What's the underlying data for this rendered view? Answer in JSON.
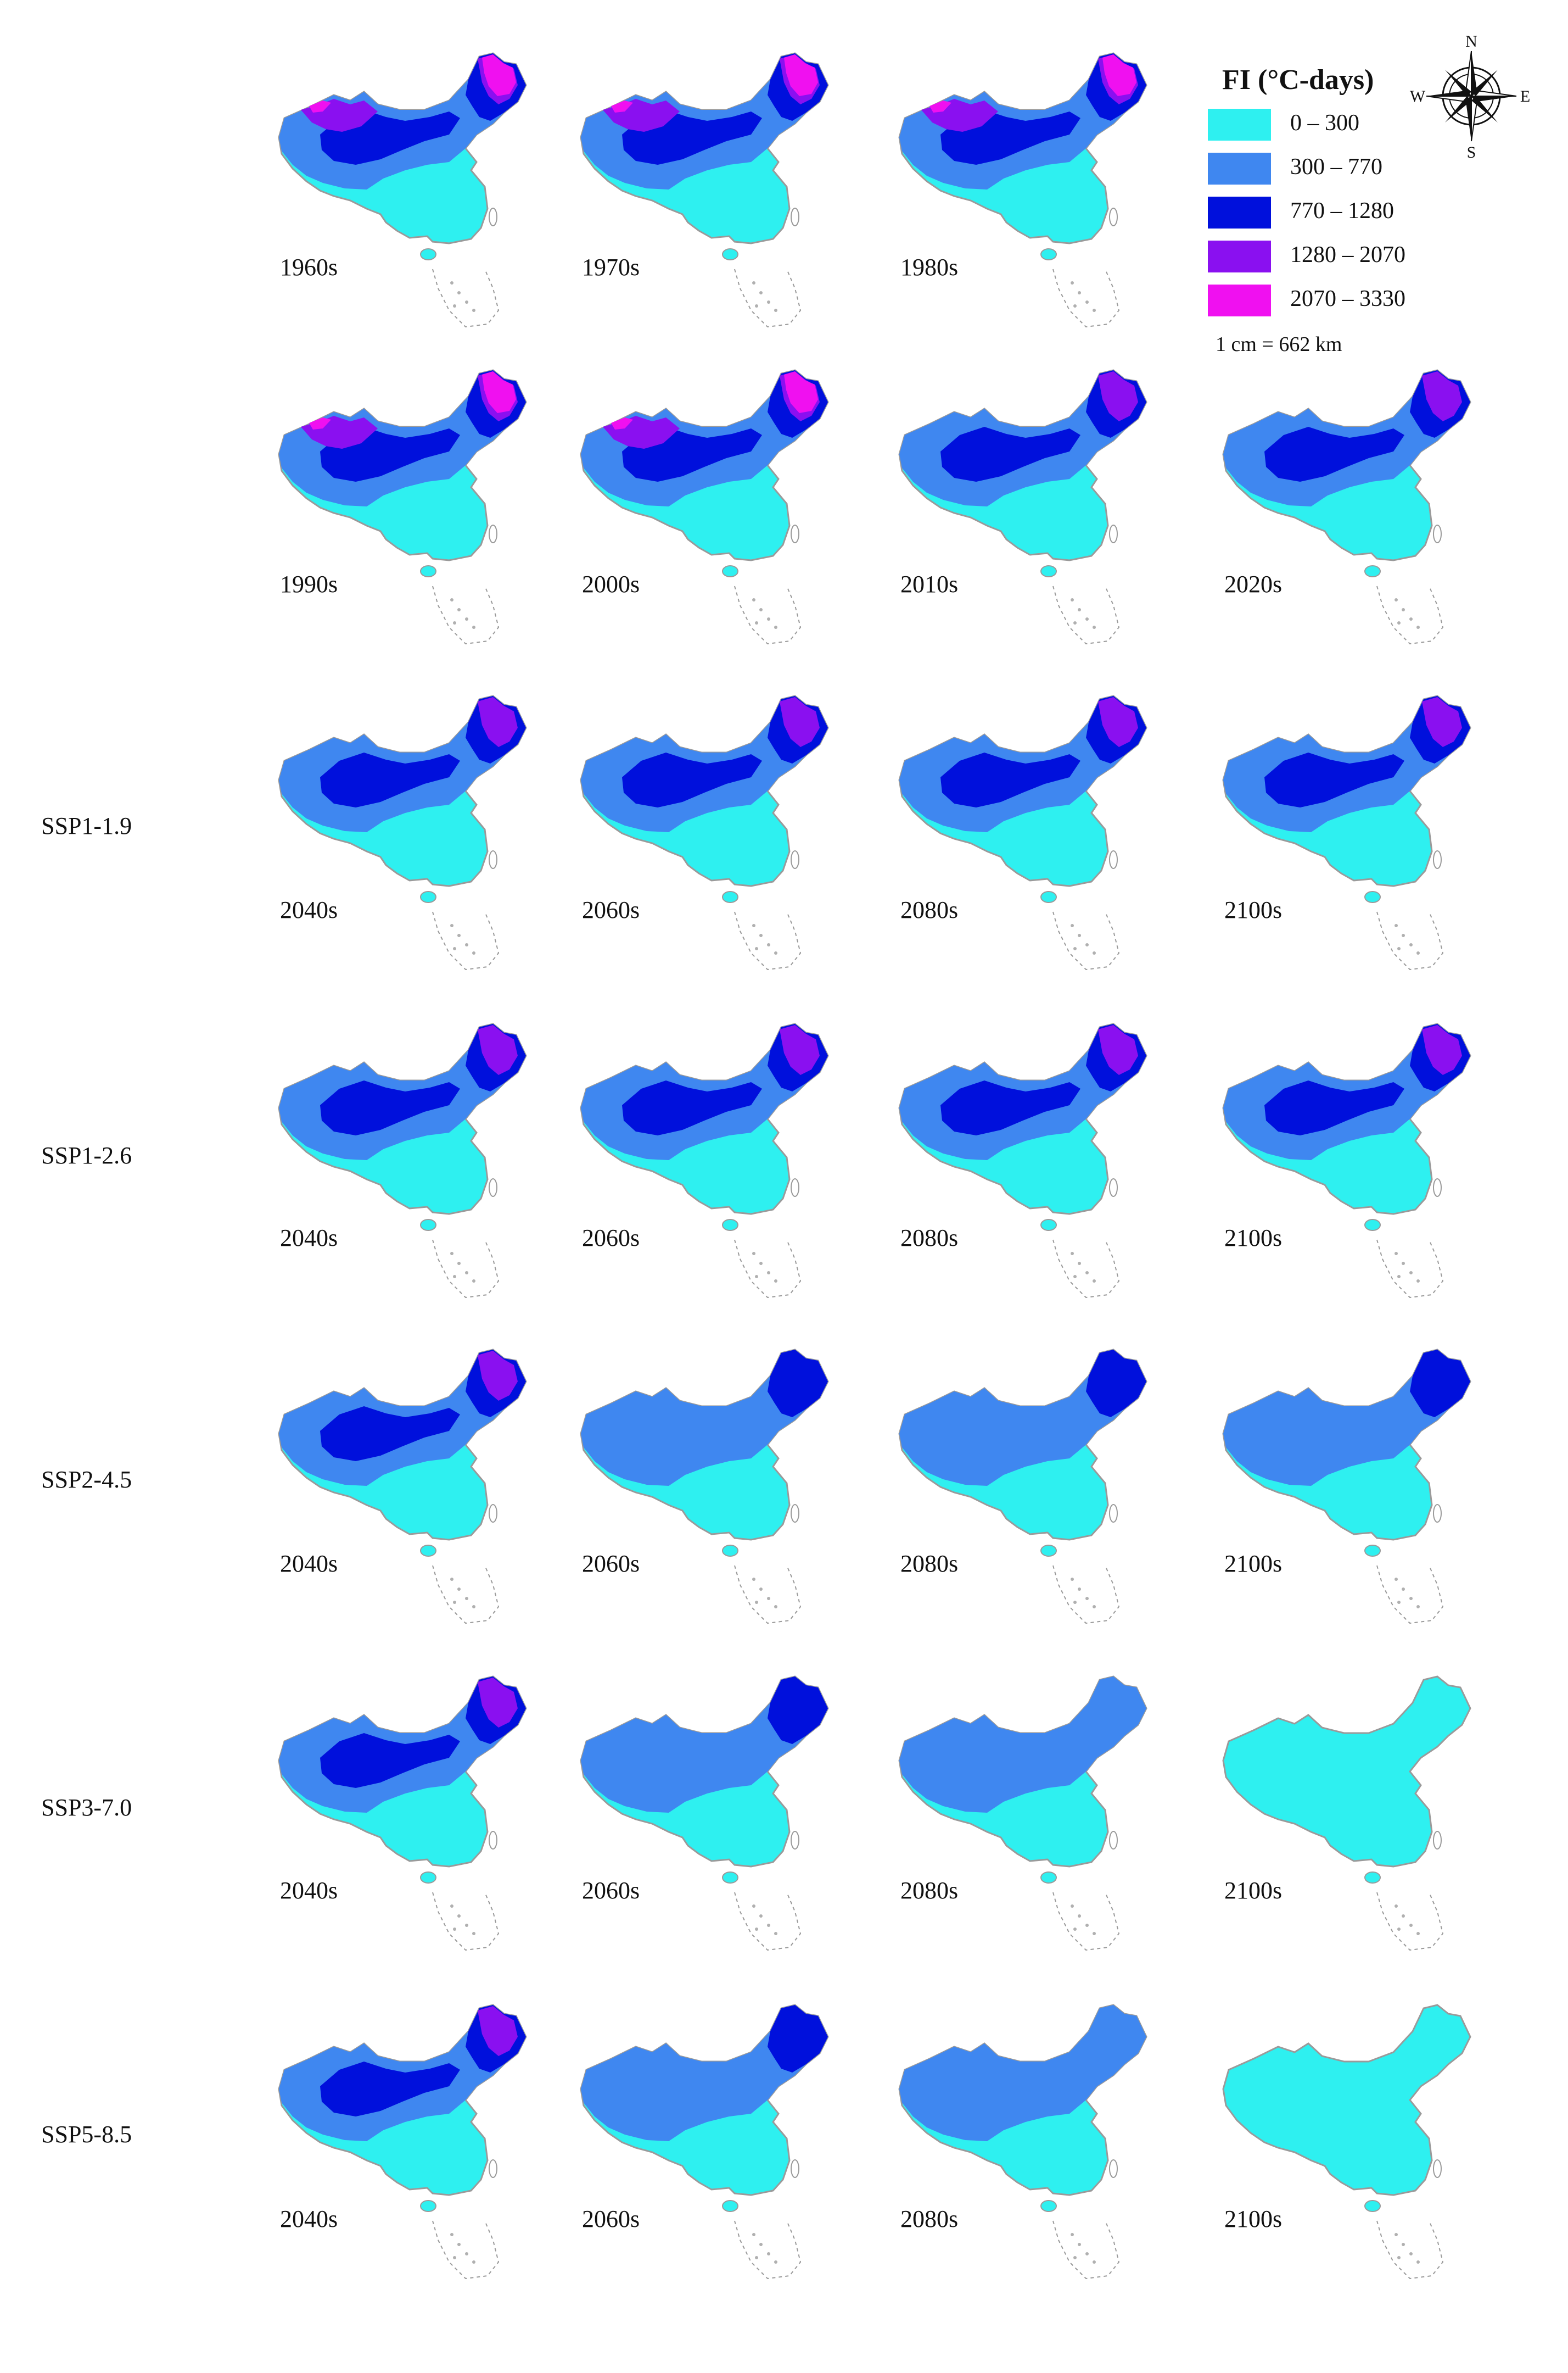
{
  "legend": {
    "title": "FI (°C-days)",
    "classes": [
      {
        "label": "0 – 300",
        "color": "#2ef0f0"
      },
      {
        "label": "300 – 770",
        "color": "#3f87f0"
      },
      {
        "label": "770 – 1280",
        "color": "#0010dc"
      },
      {
        "label": "1280 – 2070",
        "color": "#8a10f0"
      },
      {
        "label": "2070 – 3330",
        "color": "#f010f0"
      }
    ],
    "scale": "1 cm = 662 km"
  },
  "compass": {
    "n": "N",
    "e": "E",
    "s": "S",
    "w": "W",
    "icon": "compass-rose-icon"
  },
  "rows": [
    {
      "label": "",
      "panels": [
        {
          "period": "1960s",
          "level": 4
        },
        {
          "period": "1970s",
          "level": 4
        },
        {
          "period": "1980s",
          "level": 4
        }
      ]
    },
    {
      "label": "",
      "panels": [
        {
          "period": "1990s",
          "level": 4
        },
        {
          "period": "2000s",
          "level": 4
        },
        {
          "period": "2010s",
          "level": 3
        },
        {
          "period": "2020s",
          "level": 3
        }
      ]
    },
    {
      "label": "SSP1-1.9",
      "panels": [
        {
          "period": "2040s",
          "level": 3
        },
        {
          "period": "2060s",
          "level": 3
        },
        {
          "period": "2080s",
          "level": 3
        },
        {
          "period": "2100s",
          "level": 3
        }
      ]
    },
    {
      "label": "SSP1-2.6",
      "panels": [
        {
          "period": "2040s",
          "level": 3
        },
        {
          "period": "2060s",
          "level": 3
        },
        {
          "period": "2080s",
          "level": 3
        },
        {
          "period": "2100s",
          "level": 3
        }
      ]
    },
    {
      "label": "SSP2-4.5",
      "panels": [
        {
          "period": "2040s",
          "level": 3
        },
        {
          "period": "2060s",
          "level": 2
        },
        {
          "period": "2080s",
          "level": 2
        },
        {
          "period": "2100s",
          "level": 2
        }
      ]
    },
    {
      "label": "SSP3-7.0",
      "panels": [
        {
          "period": "2040s",
          "level": 3
        },
        {
          "period": "2060s",
          "level": 2
        },
        {
          "period": "2080s",
          "level": 1
        },
        {
          "period": "2100s",
          "level": 0
        }
      ]
    },
    {
      "label": "SSP5-8.5",
      "panels": [
        {
          "period": "2040s",
          "level": 3
        },
        {
          "period": "2060s",
          "level": 2
        },
        {
          "period": "2080s",
          "level": 1
        },
        {
          "period": "2100s",
          "level": 0
        }
      ]
    }
  ]
}
